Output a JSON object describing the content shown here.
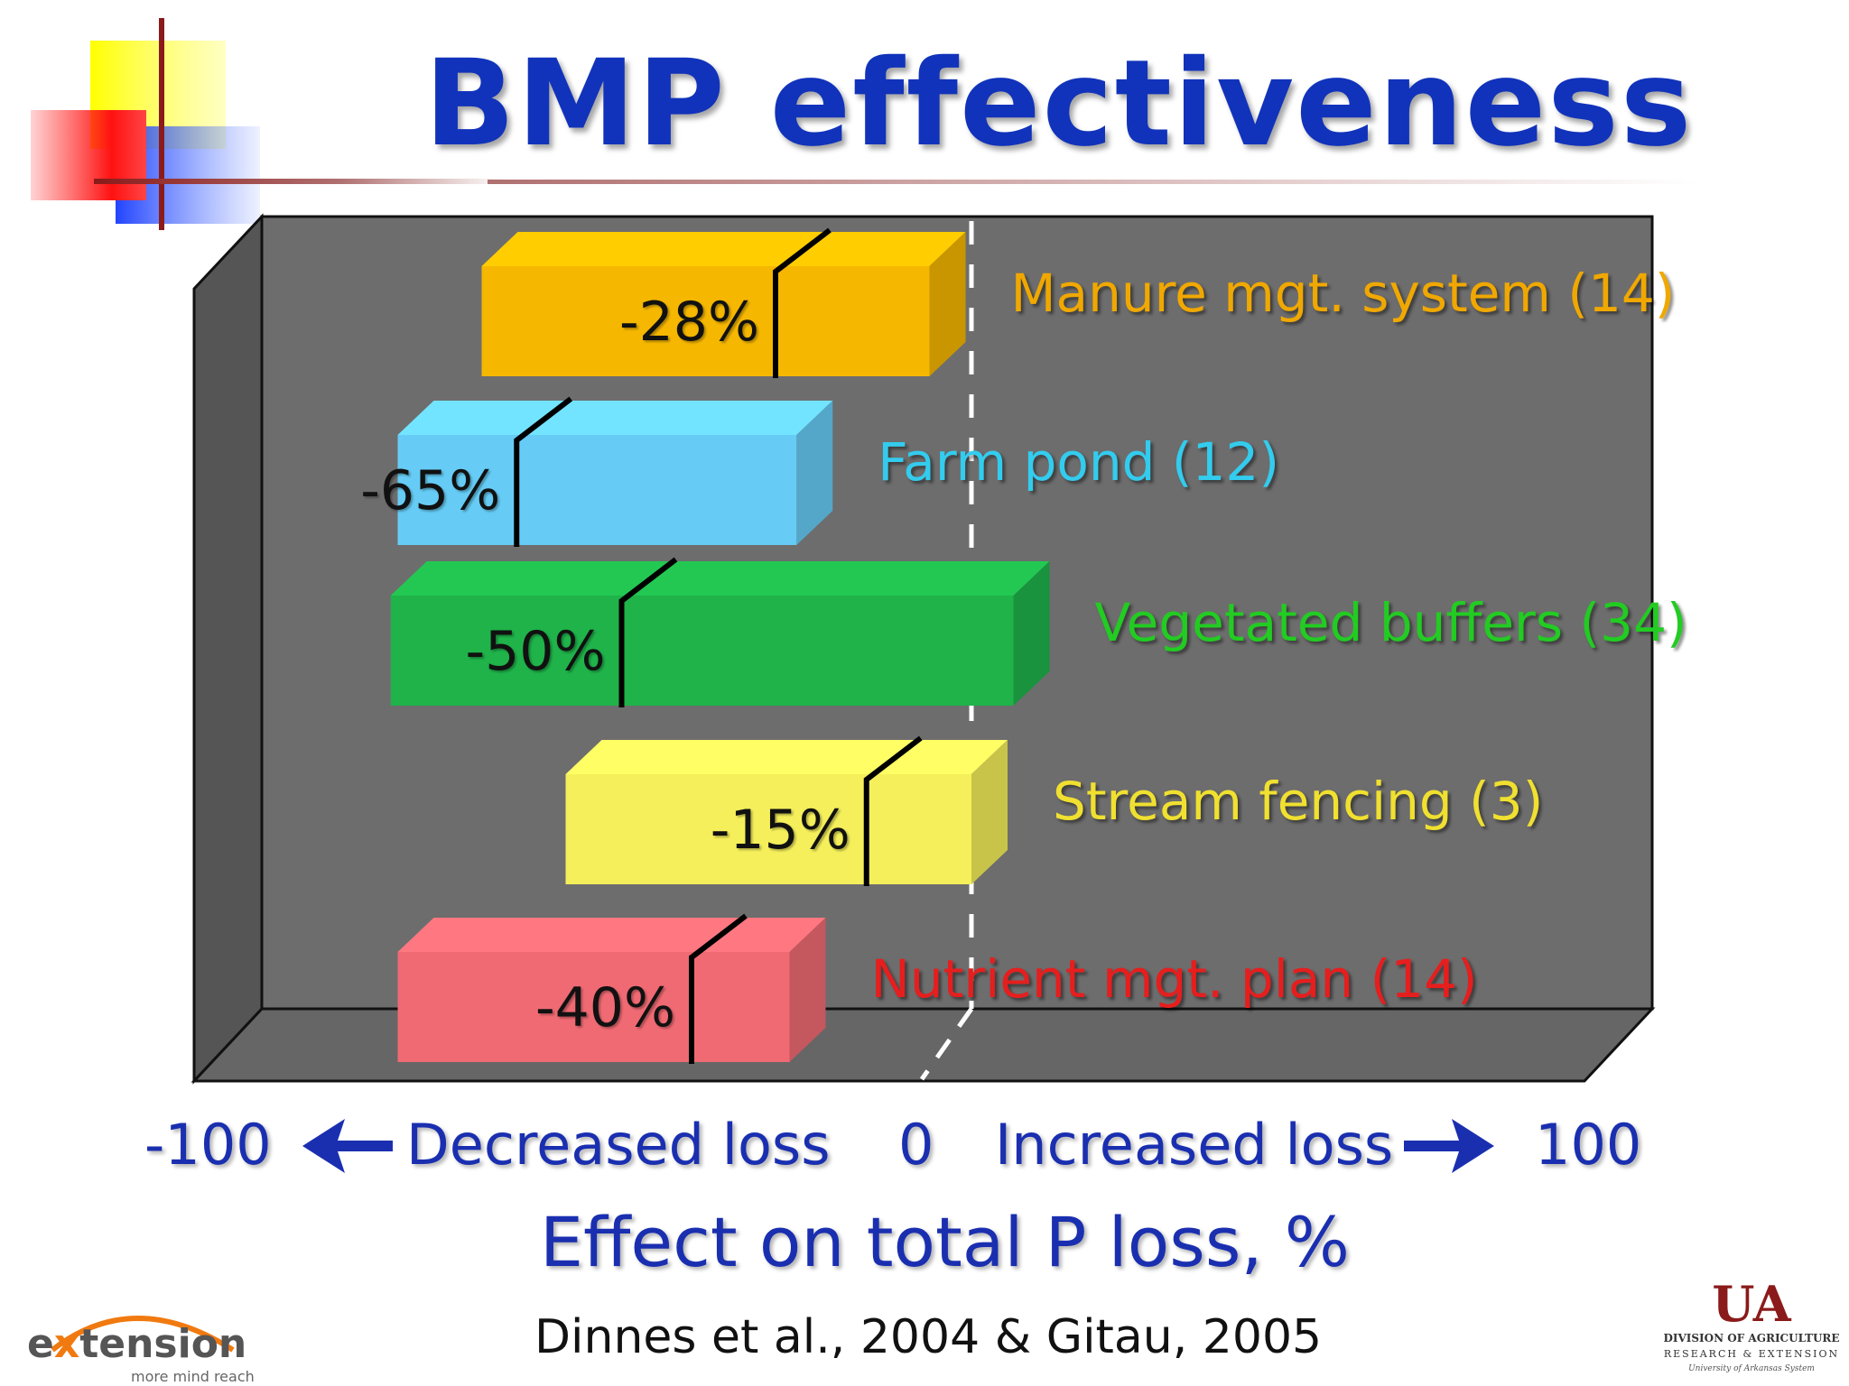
{
  "slide": {
    "title": "BMP effectiveness",
    "source": "Dinnes et al., 2004 & Gitau, 2005"
  },
  "chart_data": {
    "type": "bar",
    "orientation": "horizontal",
    "title": "",
    "xlabel": "Effect on total P loss, %",
    "xlim": [
      -100,
      100
    ],
    "x_ticks": [
      "-100",
      "0",
      "100"
    ],
    "direction_labels": {
      "left": "Decreased loss",
      "right": "Increased loss"
    },
    "categories": [
      "Manure mgt. system (14)",
      "Farm pond (12)",
      "Vegetated buffers (34)",
      "Stream fencing (3)",
      "Nutrient mgt. plan (14)"
    ],
    "value_labels": [
      "-28%",
      "-65%",
      "-50%",
      "-15%",
      "-40%"
    ],
    "values": [
      -28,
      -65,
      -50,
      -15,
      -40
    ],
    "range_low": [
      -70,
      -82,
      -83,
      -58,
      -82
    ],
    "range_high": [
      -6,
      -25,
      6,
      0,
      -26
    ],
    "colors": [
      "#f5b700",
      "#66ccf5",
      "#1fb34a",
      "#f4ef5a",
      "#f06a73"
    ],
    "label_colors": [
      "#f0a800",
      "#33ccee",
      "#22cc22",
      "#f0e030",
      "#e61e1e"
    ]
  },
  "logos": {
    "extension": {
      "e": "e",
      "x": "x",
      "rest": "tension",
      "tagline": "more mind reach"
    },
    "ua": {
      "mark": "UA",
      "line1": "DIVISION OF AGRICULTURE",
      "line2": "RESEARCH & EXTENSION",
      "line3": "University of Arkansas System"
    }
  }
}
